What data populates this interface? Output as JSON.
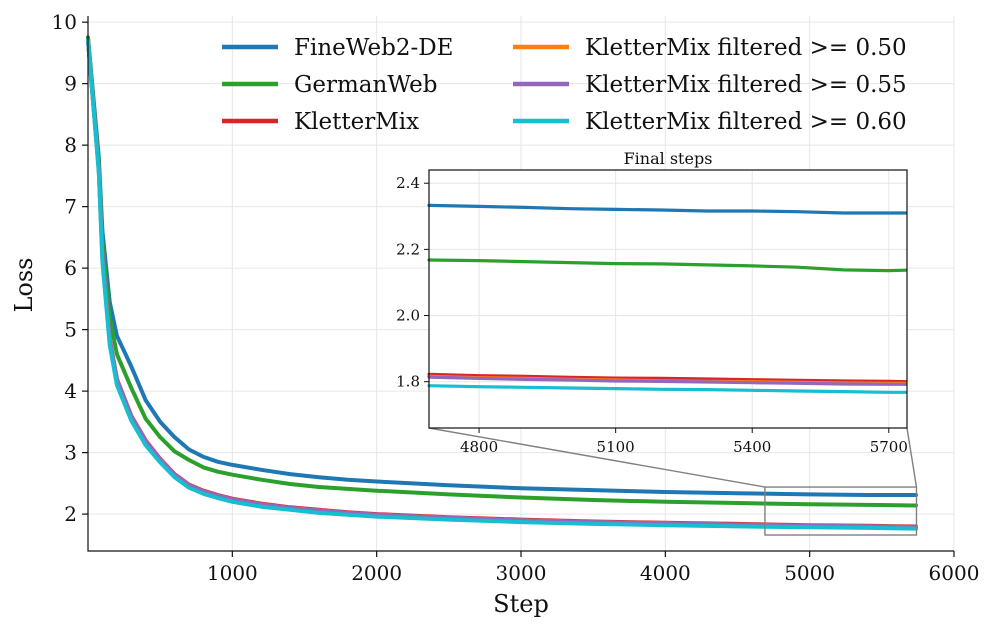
{
  "chart_data": {
    "type": "line",
    "xlabel": "Step",
    "ylabel": "Loss",
    "xlim": [
      0,
      6000
    ],
    "ylim": [
      1.4,
      10.1
    ],
    "xticks": [
      1000,
      2000,
      3000,
      4000,
      5000,
      6000
    ],
    "yticks": [
      2,
      3,
      4,
      5,
      6,
      7,
      8,
      9,
      10
    ],
    "grid": true,
    "legend": "top-right",
    "series": [
      {
        "name": "FineWeb2-DE",
        "color": "#1f77b4",
        "x": [
          0,
          75,
          100,
          150,
          200,
          300,
          400,
          500,
          600,
          700,
          800,
          900,
          1000,
          1200,
          1400,
          1600,
          1800,
          2000,
          2500,
          3000,
          3500,
          4000,
          4500,
          5000,
          5400,
          5737
        ],
        "y": [
          9.75,
          7.8,
          6.6,
          5.45,
          4.9,
          4.4,
          3.85,
          3.5,
          3.25,
          3.05,
          2.93,
          2.85,
          2.8,
          2.72,
          2.65,
          2.6,
          2.56,
          2.53,
          2.47,
          2.42,
          2.39,
          2.36,
          2.34,
          2.32,
          2.31,
          2.31
        ]
      },
      {
        "name": "GermanWeb",
        "color": "#2ca02c",
        "x": [
          0,
          75,
          100,
          150,
          200,
          300,
          400,
          500,
          600,
          700,
          800,
          900,
          1000,
          1200,
          1400,
          1600,
          1800,
          2000,
          2500,
          3000,
          3500,
          4000,
          4500,
          5000,
          5400,
          5737
        ],
        "y": [
          9.75,
          7.7,
          6.4,
          5.2,
          4.6,
          4.05,
          3.55,
          3.25,
          3.02,
          2.88,
          2.76,
          2.69,
          2.64,
          2.56,
          2.49,
          2.44,
          2.41,
          2.38,
          2.32,
          2.27,
          2.23,
          2.2,
          2.18,
          2.16,
          2.15,
          2.14
        ]
      },
      {
        "name": "KletterMix",
        "color": "#d62728",
        "x": [
          0,
          75,
          100,
          150,
          200,
          300,
          400,
          500,
          600,
          700,
          800,
          900,
          1000,
          1200,
          1400,
          1600,
          1800,
          2000,
          2500,
          3000,
          3500,
          4000,
          4500,
          5000,
          5400,
          5737
        ],
        "y": [
          9.7,
          7.6,
          6.2,
          4.85,
          4.2,
          3.6,
          3.2,
          2.9,
          2.65,
          2.48,
          2.38,
          2.31,
          2.25,
          2.17,
          2.11,
          2.07,
          2.03,
          2.0,
          1.95,
          1.91,
          1.88,
          1.86,
          1.84,
          1.82,
          1.81,
          1.8
        ]
      },
      {
        "name": "KletterMix filtered >= 0.50",
        "color": "#ff7f0e",
        "x": [
          0,
          75,
          100,
          150,
          200,
          300,
          400,
          500,
          600,
          700,
          800,
          900,
          1000,
          1200,
          1400,
          1600,
          1800,
          2000,
          2500,
          3000,
          3500,
          4000,
          4500,
          5000,
          5400,
          5737
        ],
        "y": [
          9.7,
          7.6,
          6.2,
          4.84,
          4.19,
          3.59,
          3.19,
          2.89,
          2.64,
          2.47,
          2.37,
          2.3,
          2.24,
          2.16,
          2.1,
          2.06,
          2.02,
          1.99,
          1.94,
          1.9,
          1.87,
          1.85,
          1.83,
          1.81,
          1.8,
          1.795
        ]
      },
      {
        "name": "KletterMix filtered >= 0.55",
        "color": "#9467bd",
        "x": [
          0,
          75,
          100,
          150,
          200,
          300,
          400,
          500,
          600,
          700,
          800,
          900,
          1000,
          1200,
          1400,
          1600,
          1800,
          2000,
          2500,
          3000,
          3500,
          4000,
          4500,
          5000,
          5400,
          5737
        ],
        "y": [
          9.7,
          7.6,
          6.2,
          4.84,
          4.19,
          3.59,
          3.19,
          2.89,
          2.64,
          2.47,
          2.37,
          2.3,
          2.24,
          2.16,
          2.1,
          2.06,
          2.02,
          1.99,
          1.94,
          1.9,
          1.87,
          1.85,
          1.83,
          1.81,
          1.8,
          1.79
        ]
      },
      {
        "name": "KletterMix filtered >= 0.60",
        "color": "#17becf",
        "x": [
          0,
          75,
          100,
          150,
          200,
          300,
          400,
          500,
          600,
          700,
          800,
          900,
          1000,
          1200,
          1400,
          1600,
          1800,
          2000,
          2500,
          3000,
          3500,
          4000,
          4500,
          5000,
          5400,
          5737
        ],
        "y": [
          9.7,
          7.55,
          6.1,
          4.75,
          4.1,
          3.52,
          3.12,
          2.84,
          2.6,
          2.43,
          2.33,
          2.26,
          2.2,
          2.12,
          2.07,
          2.02,
          1.99,
          1.96,
          1.91,
          1.87,
          1.84,
          1.82,
          1.8,
          1.785,
          1.775,
          1.765
        ]
      }
    ],
    "inset": {
      "title": "Final steps",
      "xlim": [
        4690,
        5740
      ],
      "ylim": [
        1.66,
        2.44
      ],
      "xticks": [
        4800,
        5100,
        5400,
        5700
      ],
      "yticks": [
        1.8,
        2.0,
        2.2,
        2.4
      ],
      "series": [
        {
          "name": "FineWeb2-DE",
          "color": "#1f77b4",
          "x": [
            4690,
            4800,
            4900,
            5000,
            5100,
            5200,
            5300,
            5400,
            5500,
            5600,
            5700,
            5737
          ],
          "y": [
            2.333,
            2.33,
            2.327,
            2.323,
            2.321,
            2.319,
            2.316,
            2.316,
            2.314,
            2.31,
            2.31,
            2.31
          ]
        },
        {
          "name": "GermanWeb",
          "color": "#2ca02c",
          "x": [
            4690,
            4800,
            4900,
            5000,
            5100,
            5200,
            5300,
            5400,
            5500,
            5600,
            5700,
            5737
          ],
          "y": [
            2.168,
            2.166,
            2.163,
            2.16,
            2.157,
            2.156,
            2.153,
            2.15,
            2.146,
            2.138,
            2.136,
            2.137
          ]
        },
        {
          "name": "KletterMix",
          "color": "#d62728",
          "x": [
            4690,
            4800,
            4900,
            5000,
            5100,
            5200,
            5300,
            5400,
            5500,
            5600,
            5700,
            5737
          ],
          "y": [
            1.822,
            1.818,
            1.816,
            1.813,
            1.811,
            1.81,
            1.808,
            1.806,
            1.804,
            1.802,
            1.801,
            1.8
          ]
        },
        {
          "name": "KletterMix filtered >= 0.50",
          "color": "#ff7f0e",
          "x": [
            4690,
            4800,
            4900,
            5000,
            5100,
            5200,
            5300,
            5400,
            5500,
            5600,
            5700,
            5737
          ],
          "y": [
            1.816,
            1.812,
            1.81,
            1.807,
            1.805,
            1.803,
            1.801,
            1.8,
            1.798,
            1.796,
            1.795,
            1.795
          ]
        },
        {
          "name": "KletterMix filtered >= 0.55",
          "color": "#9467bd",
          "x": [
            4690,
            4800,
            4900,
            5000,
            5100,
            5200,
            5300,
            5400,
            5500,
            5600,
            5700,
            5737
          ],
          "y": [
            1.814,
            1.81,
            1.807,
            1.805,
            1.802,
            1.801,
            1.799,
            1.797,
            1.795,
            1.793,
            1.792,
            1.792
          ]
        },
        {
          "name": "KletterMix filtered >= 0.60",
          "color": "#17becf",
          "x": [
            4690,
            4800,
            4900,
            5000,
            5100,
            5200,
            5300,
            5400,
            5500,
            5600,
            5700,
            5737
          ],
          "y": [
            1.788,
            1.785,
            1.783,
            1.781,
            1.779,
            1.777,
            1.776,
            1.774,
            1.772,
            1.77,
            1.768,
            1.768
          ]
        }
      ]
    }
  }
}
